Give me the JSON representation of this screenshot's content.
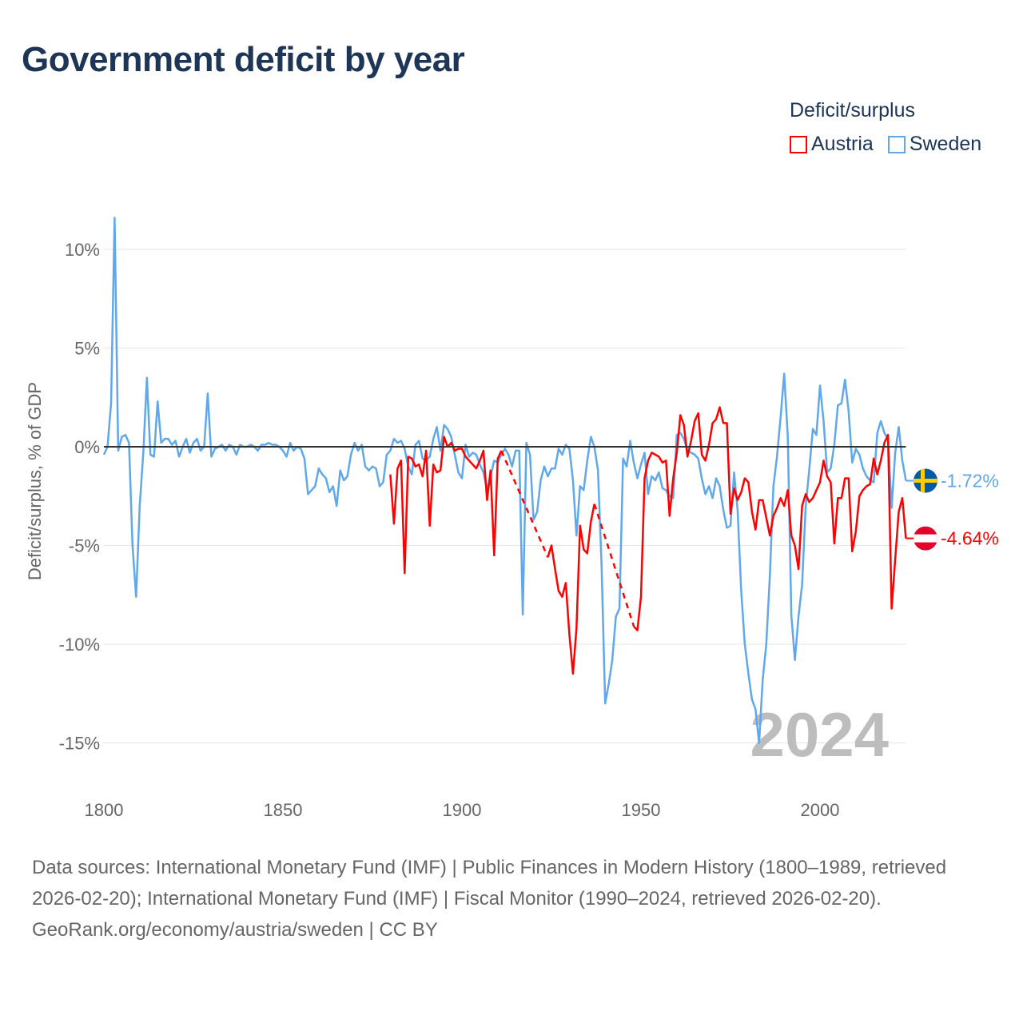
{
  "header": {
    "title": "Government deficit by year"
  },
  "legend": {
    "title": "Deficit/surplus",
    "items": [
      {
        "label": "Austria",
        "color": "#ff0000"
      },
      {
        "label": "Sweden",
        "color": "#5fa8ec"
      }
    ]
  },
  "footer": {
    "sources": "Data sources: International Monetary Fund (IMF) | Public Finances in Modern History (1800–1989, retrieved 2026-02-20); International Monetary Fund (IMF) | Fiscal Monitor (1990–2024, retrieved 2026-02-20).",
    "credit": "GeoRank.org/economy/austria/sweden | CC BY"
  },
  "chart_data": {
    "type": "line",
    "title": "Government deficit by year",
    "xlabel": "",
    "ylabel": "Deficit/surplus, % of GDP",
    "xlim": [
      1800,
      2024
    ],
    "ylim": [
      -15,
      10
    ],
    "x_ticks": [
      {
        "value": 1800,
        "label": "1800"
      },
      {
        "value": 1850,
        "label": "1850"
      },
      {
        "value": 1900,
        "label": "1900"
      },
      {
        "value": 1950,
        "label": "1950"
      },
      {
        "value": 2000,
        "label": "2000"
      }
    ],
    "y_ticks": [
      {
        "value": 10,
        "label": "10%"
      },
      {
        "value": 5,
        "label": "5%"
      },
      {
        "value": 0,
        "label": "0%"
      },
      {
        "value": -5,
        "label": "-5%"
      },
      {
        "value": -10,
        "label": "-10%"
      },
      {
        "value": -15,
        "label": "-15%"
      }
    ],
    "grid": true,
    "legend_position": "top-right",
    "year_watermark": "2024",
    "series": [
      {
        "name": "Sweden",
        "color": "#5fa8ec",
        "start_year": 1800,
        "end_label": "-1.72%",
        "values": [
          -0.4,
          0.0,
          2.2,
          11.6,
          -0.2,
          0.5,
          0.6,
          0.2,
          -5,
          -7.6,
          -3,
          -0.3,
          3.5,
          -0.4,
          -0.5,
          2.3,
          0.2,
          0.4,
          0.4,
          0.1,
          0.3,
          -0.5,
          0,
          0.4,
          -0.3,
          0.2,
          0.4,
          -0.2,
          0,
          2.7,
          -0.5,
          -0.1,
          0,
          0.1,
          -0.2,
          0.1,
          0,
          -0.4,
          0.1,
          0,
          0,
          0.1,
          0,
          -0.2,
          0.1,
          0.1,
          0.2,
          0.1,
          0.1,
          0,
          -0.2,
          -0.5,
          0.2,
          -0.2,
          0,
          -0.1,
          -0.6,
          -2.4,
          -2.2,
          -2,
          -1.1,
          -1.4,
          -1.6,
          -2.3,
          -2,
          -3,
          -1.2,
          -1.7,
          -1.5,
          -0.4,
          0.2,
          -0.2,
          0.1,
          -1,
          -1.2,
          -1,
          -1.1,
          -2,
          -1.8,
          -0.4,
          -0.2,
          0.4,
          0.2,
          0.3,
          -0.1,
          -1,
          -1.4,
          0.1,
          0.3,
          -0.6,
          -0.7,
          -0.5,
          0.4,
          1,
          -0.2,
          1.1,
          0.9,
          0.5,
          -0.4,
          -1.3,
          -1.6,
          0.1,
          -0.5,
          -0.3,
          -0.4,
          -0.9,
          -1.3,
          -2.2,
          -1.5,
          -0.7,
          -0.8,
          -0.4,
          -0.1,
          -0.4,
          -1,
          -0.2,
          -0.2,
          -8.5,
          0.2,
          -0.4,
          -3.7,
          -3.3,
          -1.7,
          -1,
          -1.5,
          -1.1,
          -1.1,
          -0.1,
          -0.4,
          0.1,
          -0.1,
          -1.7,
          -4.5,
          -2,
          -2.2,
          -0.7,
          0.5,
          0,
          -1.2,
          -6,
          -13,
          -12,
          -10.8,
          -8.6,
          -8.2,
          -0.6,
          -1,
          0.3,
          -0.8,
          -1.6,
          -0.9,
          -0.3,
          -2.4,
          -1.5,
          -1.7,
          -1.3,
          -2.1,
          -2.2,
          -2.5,
          -2.6,
          0.6,
          0.7,
          0.4,
          -0.2,
          -0.3,
          -0.4,
          -0.6,
          -1.6,
          -2.4,
          -2,
          -2.6,
          -1.6,
          -2,
          -3.2,
          -4.1,
          -4,
          -1.3,
          -3.2,
          -7.3,
          -10,
          -11.5,
          -12.8,
          -13.3,
          -15,
          -11.8,
          -10,
          -6.5,
          -2,
          -0.5,
          1.5,
          3.7,
          0.5,
          -8.5,
          -10.8,
          -8.6,
          -7,
          -3,
          -1.2,
          0.9,
          0.6,
          3.1,
          1.3,
          -1.3,
          -1.1,
          0.1,
          2.1,
          2.2,
          3.4,
          1.8,
          -0.8,
          -0.1,
          -0.4,
          -1.1,
          -1.5,
          -1.7,
          -1.8,
          0.7,
          1.3,
          0.7,
          0.4,
          -3.1,
          -0.3,
          1.0,
          -0.7,
          -1.72
        ]
      },
      {
        "name": "Austria",
        "color": "#ff0000",
        "start_year": 1880,
        "end_label": "-4.64%",
        "values": [
          -1.4,
          -3.9,
          -1.1,
          -0.7,
          -6.4,
          -0.5,
          -0.6,
          -1,
          -0.9,
          -1.5,
          -0.2,
          -4,
          -0.9,
          -1.3,
          -1.2,
          0.5,
          0,
          0.2,
          -0.2,
          -0.1,
          -0.1,
          -0.5,
          -0.7,
          -0.9,
          -1.1,
          -0.7,
          -0.2,
          -2.7,
          -1.2,
          -5.5,
          -0.6,
          -0.2,
          null,
          null,
          null,
          null,
          null,
          null,
          null,
          null,
          null,
          null,
          null,
          null,
          -5.6,
          -5,
          -6.2,
          -7.3,
          -7.6,
          -6.9,
          -9.5,
          -11.5,
          -9.2,
          -4,
          -5.2,
          -5.4,
          -3.8,
          -2.9,
          null,
          null,
          null,
          null,
          null,
          null,
          null,
          null,
          null,
          null,
          -9.1,
          -9.3,
          -7.6,
          -1.6,
          -0.7,
          -0.3,
          -0.4,
          -0.5,
          -0.8,
          -0.7,
          -3.5,
          -1.6,
          -0.3,
          1.6,
          1.1,
          -0.5,
          0.3,
          1.3,
          1.7,
          -0.4,
          -0.7,
          0.1,
          1.2,
          1.4,
          2,
          1.2,
          1.2,
          -3.4,
          -2.1,
          -2.7,
          -2.3,
          -1.6,
          -1.8,
          -3.3,
          -4.2,
          -2.7,
          -2.7,
          -3.6,
          -4.5,
          -3.5,
          -3.1,
          -2.6,
          -3,
          -2.2,
          -4.5,
          -5,
          -6.2,
          -3,
          -2.4,
          -2.8,
          -2.6,
          -2.2,
          -1.8,
          -0.7,
          -1.5,
          -1.8,
          -4.9,
          -2.6,
          -2.6,
          -1.6,
          -1.6,
          -5.3,
          -4.3,
          -2.5,
          -2.2,
          -2,
          -1.9,
          -0.6,
          -1.4,
          -0.7,
          0.2,
          0.6,
          -8.2,
          -5.7,
          -3.3,
          -2.6,
          -4.64
        ]
      }
    ]
  }
}
